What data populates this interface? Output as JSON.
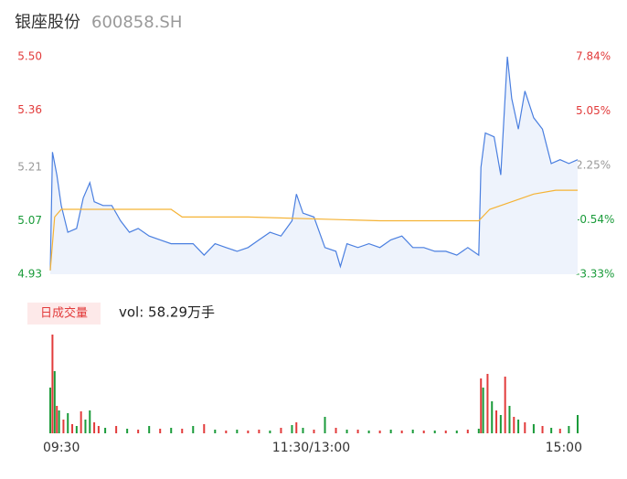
{
  "header": {
    "name": "银座股份",
    "code": "600858.SH"
  },
  "chart_data": [
    {
      "type": "line",
      "ylim": [
        4.93,
        5.5
      ],
      "yticks": [
        {
          "value": 5.5,
          "label": "5.50"
        },
        5.36,
        5.21,
        5.07,
        4.93
      ],
      "ytick_colors": [
        "#e23b3b",
        "#e23b3b",
        "#999999",
        "#1a9b3a",
        "#1a9b3a"
      ],
      "y2lim": [
        -3.33,
        7.84
      ],
      "y2ticks": [
        {
          "value": 7.84,
          "label": "7.84%"
        },
        {
          "value": 5.05,
          "label": "5.05%"
        },
        {
          "value": 2.25,
          "label": "2.25%"
        },
        {
          "value": -0.54,
          "label": "-0.54%"
        },
        {
          "value": -3.33,
          "label": "-3.33%"
        }
      ],
      "y2tick_colors": [
        "#e23b3b",
        "#e23b3b",
        "#999999",
        "#1a9b3a",
        "#1a9b3a"
      ],
      "xlim": [
        0,
        240
      ],
      "series": [
        {
          "color": "#4a7fe0",
          "fill": "#eef3fc",
          "x": [
            0,
            1,
            3,
            5,
            8,
            12,
            15,
            18,
            20,
            24,
            28,
            32,
            36,
            40,
            45,
            50,
            55,
            60,
            65,
            70,
            75,
            80,
            85,
            90,
            95,
            100,
            105,
            110,
            112,
            115,
            120,
            125,
            130,
            132,
            135,
            140,
            145,
            150,
            155,
            160,
            165,
            170,
            175,
            180,
            185,
            190,
            195,
            196,
            198,
            202,
            205,
            208,
            210,
            213,
            216,
            220,
            224,
            228,
            232,
            236,
            240
          ],
          "values": [
            4.94,
            5.25,
            5.19,
            5.11,
            5.04,
            5.05,
            5.13,
            5.17,
            5.12,
            5.11,
            5.11,
            5.07,
            5.04,
            5.05,
            5.03,
            5.02,
            5.01,
            5.01,
            5.01,
            4.98,
            5.01,
            5.0,
            4.99,
            5.0,
            5.02,
            5.04,
            5.03,
            5.07,
            5.14,
            5.09,
            5.08,
            5.0,
            4.99,
            4.95,
            5.01,
            5.0,
            5.01,
            5.0,
            5.02,
            5.03,
            5.0,
            5.0,
            4.99,
            4.99,
            4.98,
            5.0,
            4.98,
            5.21,
            5.3,
            5.29,
            5.19,
            5.5,
            5.39,
            5.31,
            5.41,
            5.34,
            5.31,
            5.22,
            5.23,
            5.22,
            5.23
          ]
        },
        {
          "color": "#f5b335",
          "x": [
            0,
            2,
            5,
            55,
            60,
            90,
            150,
            195,
            200,
            210,
            220,
            230,
            240
          ],
          "values": [
            4.94,
            5.08,
            5.1,
            5.1,
            5.08,
            5.08,
            5.07,
            5.07,
            5.1,
            5.12,
            5.14,
            5.15,
            5.15
          ]
        }
      ]
    },
    {
      "type": "bar",
      "label": "日成交量",
      "volume_text": "vol: 58.29万手",
      "xlim": [
        0,
        240
      ],
      "xticks": [
        {
          "value": 0,
          "label": "09:30"
        },
        {
          "value": 120,
          "label": "11:30/13:00"
        },
        {
          "value": 240,
          "label": "15:00"
        }
      ],
      "ylim": [
        0,
        108
      ],
      "x": [
        0,
        1,
        2,
        3,
        4,
        6,
        8,
        10,
        12,
        14,
        16,
        18,
        20,
        22,
        25,
        30,
        35,
        40,
        45,
        50,
        55,
        60,
        65,
        70,
        75,
        80,
        85,
        90,
        95,
        100,
        105,
        110,
        112,
        115,
        120,
        125,
        130,
        135,
        140,
        145,
        150,
        155,
        160,
        165,
        170,
        175,
        180,
        185,
        190,
        195,
        196,
        197,
        199,
        201,
        203,
        205,
        207,
        209,
        211,
        213,
        216,
        220,
        224,
        228,
        232,
        236,
        240
      ],
      "values": [
        50,
        108,
        68,
        30,
        25,
        15,
        22,
        10,
        8,
        24,
        15,
        25,
        12,
        8,
        6,
        8,
        5,
        4,
        8,
        5,
        6,
        5,
        8,
        10,
        4,
        3,
        4,
        3,
        4,
        3,
        6,
        9,
        12,
        6,
        4,
        18,
        6,
        4,
        4,
        3,
        3,
        4,
        3,
        4,
        3,
        3,
        3,
        3,
        4,
        5,
        60,
        50,
        65,
        35,
        25,
        20,
        62,
        30,
        18,
        15,
        12,
        10,
        8,
        6,
        5,
        8,
        20
      ],
      "colors": [
        "#1a9b3a",
        "#e23b3b",
        "#1a9b3a",
        "#e23b3b",
        "#1a9b3a",
        "#e23b3b",
        "#1a9b3a",
        "#e23b3b",
        "#1a9b3a",
        "#e23b3b",
        "#1a9b3a",
        "#1a9b3a",
        "#e23b3b",
        "#e23b3b",
        "#1a9b3a",
        "#e23b3b",
        "#1a9b3a",
        "#e23b3b",
        "#1a9b3a",
        "#e23b3b",
        "#1a9b3a",
        "#e23b3b",
        "#1a9b3a",
        "#e23b3b",
        "#1a9b3a",
        "#e23b3b",
        "#1a9b3a",
        "#e23b3b",
        "#e23b3b",
        "#1a9b3a",
        "#e23b3b",
        "#1a9b3a",
        "#e23b3b",
        "#1a9b3a",
        "#e23b3b",
        "#1a9b3a",
        "#e23b3b",
        "#1a9b3a",
        "#e23b3b",
        "#1a9b3a",
        "#e23b3b",
        "#1a9b3a",
        "#e23b3b",
        "#1a9b3a",
        "#e23b3b",
        "#1a9b3a",
        "#e23b3b",
        "#1a9b3a",
        "#e23b3b",
        "#1a9b3a",
        "#e23b3b",
        "#1a9b3a",
        "#e23b3b",
        "#1a9b3a",
        "#e23b3b",
        "#1a9b3a",
        "#e23b3b",
        "#1a9b3a",
        "#e23b3b",
        "#1a9b3a",
        "#e23b3b",
        "#1a9b3a",
        "#e23b3b",
        "#1a9b3a",
        "#e23b3b",
        "#1a9b3a",
        "#1a9b3a"
      ]
    }
  ]
}
